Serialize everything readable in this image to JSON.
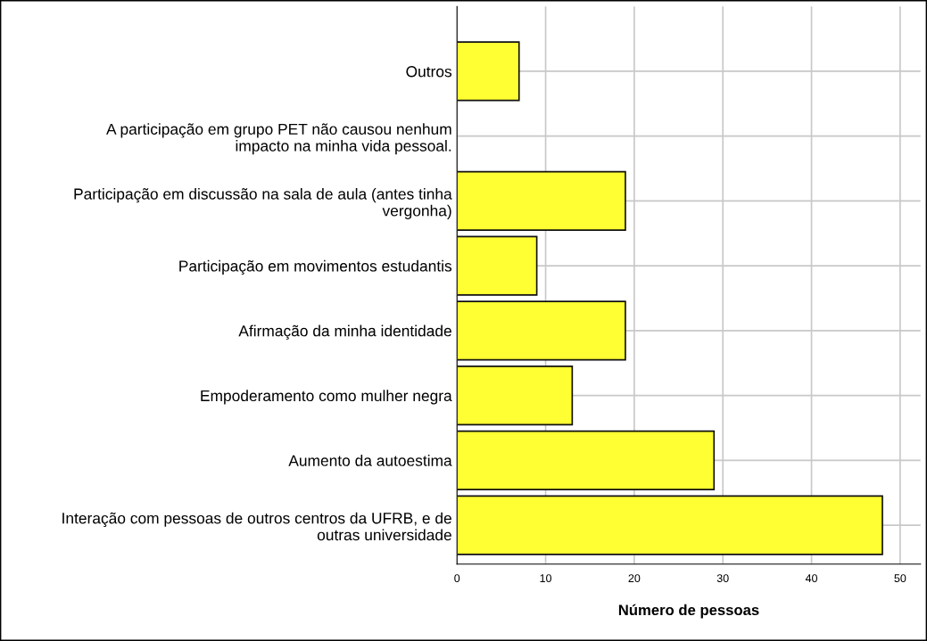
{
  "chart_data": {
    "type": "bar",
    "orientation": "horizontal",
    "xlabel": "Número de pessoas",
    "categories": [
      "Outros",
      "A participação em grupo PET não causou nenhum\nimpacto na minha vida pessoal.",
      "Participação em discussão na sala de aula (antes tinha\nvergonha)",
      "Participação em movimentos estudantis",
      "Afirmação da minha identidade",
      "Empoderamento como mulher negra",
      "Aumento da autoestima",
      "Interação com pessoas de outros centros da UFRB, e de\noutras universidade"
    ],
    "values": [
      7,
      0,
      19,
      9,
      19,
      13,
      29,
      48
    ],
    "color": "#ffff33",
    "xlim": [
      0,
      52.3
    ],
    "xticks": [
      0,
      10,
      20,
      30,
      40,
      50
    ],
    "grid": true
  }
}
